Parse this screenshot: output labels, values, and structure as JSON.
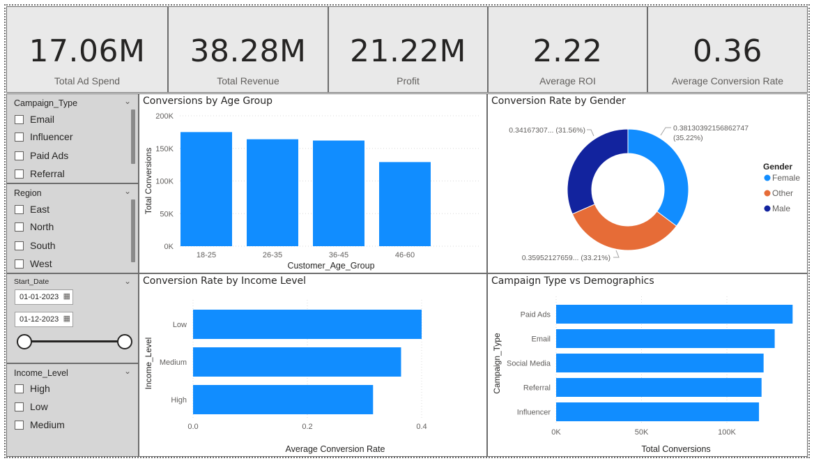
{
  "kpis": [
    {
      "value": "17.06M",
      "label": "Total Ad Spend"
    },
    {
      "value": "38.28M",
      "label": "Total Revenue"
    },
    {
      "value": "21.22M",
      "label": "Profit"
    },
    {
      "value": "2.22",
      "label": "Average ROI"
    },
    {
      "value": "0.36",
      "label": "Average Conversion Rate"
    }
  ],
  "slicers": {
    "campaign_type": {
      "title": "Campaign_Type",
      "items": [
        "Email",
        "Influencer",
        "Paid Ads",
        "Referral"
      ]
    },
    "region": {
      "title": "Region",
      "items": [
        "East",
        "North",
        "South",
        "West"
      ]
    },
    "start_date": {
      "title": "Start_Date",
      "from": "01-01-2023",
      "to": "01-12-2023",
      "range": [
        0,
        1
      ]
    },
    "income_level": {
      "title": "Income_Level",
      "items": [
        "High",
        "Low",
        "Medium"
      ]
    }
  },
  "icons": {
    "chevron": "chevron-down-icon",
    "calendar": "calendar-icon"
  },
  "colors": {
    "bar": "#118dff",
    "female": "#118dff",
    "other": "#e66c37",
    "male": "#12239e",
    "kpi_bg": "#e9e9e9",
    "slicer_bg": "#d6d6d6"
  },
  "chart_data": [
    {
      "id": "age",
      "type": "bar",
      "title": "Conversions by Age Group",
      "xlabel": "Customer_Age_Group",
      "ylabel": "Total Conversions",
      "categories": [
        "18-25",
        "26-35",
        "36-45",
        "46-60"
      ],
      "values": [
        175000,
        164000,
        162000,
        129000
      ],
      "ylim": [
        0,
        200000
      ],
      "yticks": [
        {
          "v": 0,
          "label": "0K"
        },
        {
          "v": 50000,
          "label": "50K"
        },
        {
          "v": 100000,
          "label": "100K"
        },
        {
          "v": 150000,
          "label": "150K"
        },
        {
          "v": 200000,
          "label": "200K"
        }
      ],
      "grid": true
    },
    {
      "id": "gender",
      "type": "pie",
      "title": "Conversion Rate by Gender",
      "legend_title": "Gender",
      "legend_position": "right",
      "slices": [
        {
          "name": "Female",
          "value": 0.38130392156862747,
          "label": "0.38130392156862747",
          "pct": "(35.22%)"
        },
        {
          "name": "Other",
          "value": 0.35952127659,
          "label": "0.35952127659...",
          "pct": "(33.21%)"
        },
        {
          "name": "Male",
          "value": 0.34167307,
          "label": "0.34167307...",
          "pct": "(31.56%)"
        }
      ]
    },
    {
      "id": "income",
      "type": "bar",
      "orientation": "horizontal",
      "title": "Conversion Rate by Income Level",
      "xlabel": "Average Conversion Rate",
      "ylabel": "Income_Level",
      "categories": [
        "Low",
        "Medium",
        "High"
      ],
      "values": [
        0.4,
        0.364,
        0.315
      ],
      "xlim": [
        0,
        0.4
      ],
      "xticks": [
        {
          "v": 0,
          "label": "0.0"
        },
        {
          "v": 0.2,
          "label": "0.2"
        },
        {
          "v": 0.4,
          "label": "0.4"
        }
      ],
      "grid": true
    },
    {
      "id": "campaign",
      "type": "bar",
      "orientation": "horizontal",
      "title": "Campaign Type vs Demographics",
      "xlabel": "Total Conversions",
      "ylabel": "Campaign_Type",
      "categories": [
        "Paid Ads",
        "Email",
        "Social Media",
        "Referral",
        "Influencer"
      ],
      "values": [
        138500,
        128000,
        121500,
        120300,
        118800
      ],
      "xlim": [
        0,
        140000
      ],
      "xticks": [
        {
          "v": 0,
          "label": "0K"
        },
        {
          "v": 50000,
          "label": "50K"
        },
        {
          "v": 100000,
          "label": "100K"
        }
      ],
      "grid": true
    }
  ]
}
